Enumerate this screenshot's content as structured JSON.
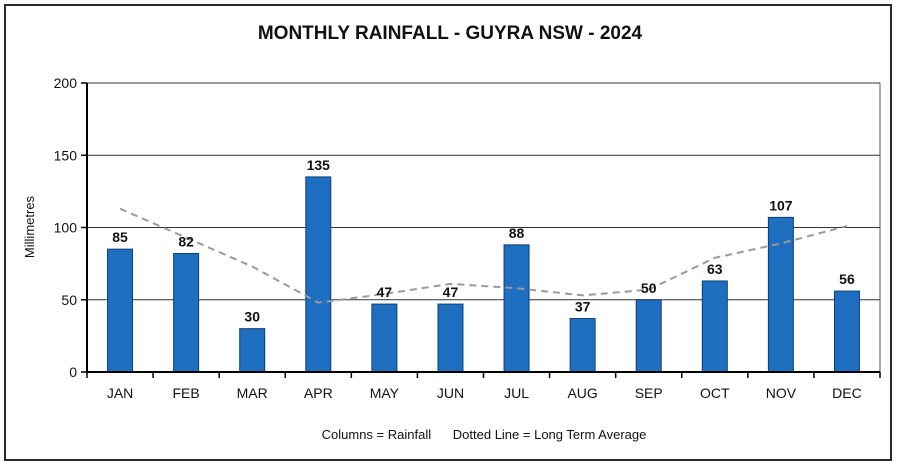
{
  "chart_data": {
    "type": "bar",
    "title": "MONTHLY RAINFALL - GUYRA NSW - 2024",
    "xlabel": "",
    "ylabel": "Millimetres",
    "categories": [
      "JAN",
      "FEB",
      "MAR",
      "APR",
      "MAY",
      "JUN",
      "JUL",
      "AUG",
      "SEP",
      "OCT",
      "NOV",
      "DEC"
    ],
    "ylim": [
      0,
      200
    ],
    "yticks": [
      0,
      50,
      100,
      150,
      200
    ],
    "grid": true,
    "legend_placement": "bottom",
    "series": [
      {
        "type": "bar",
        "values": [
          85,
          82,
          30,
          135,
          47,
          47,
          88,
          37,
          50,
          63,
          107,
          56
        ],
        "color": "#1f6fc0"
      },
      {
        "type": "line",
        "style": "dashed",
        "values": [
          113,
          93,
          73,
          48,
          54,
          61,
          58,
          53,
          57,
          79,
          89,
          101
        ],
        "color": "#9a9a9a"
      }
    ],
    "legend_text": "Columns = Rainfall      Dotted Line = Long Term Average"
  }
}
